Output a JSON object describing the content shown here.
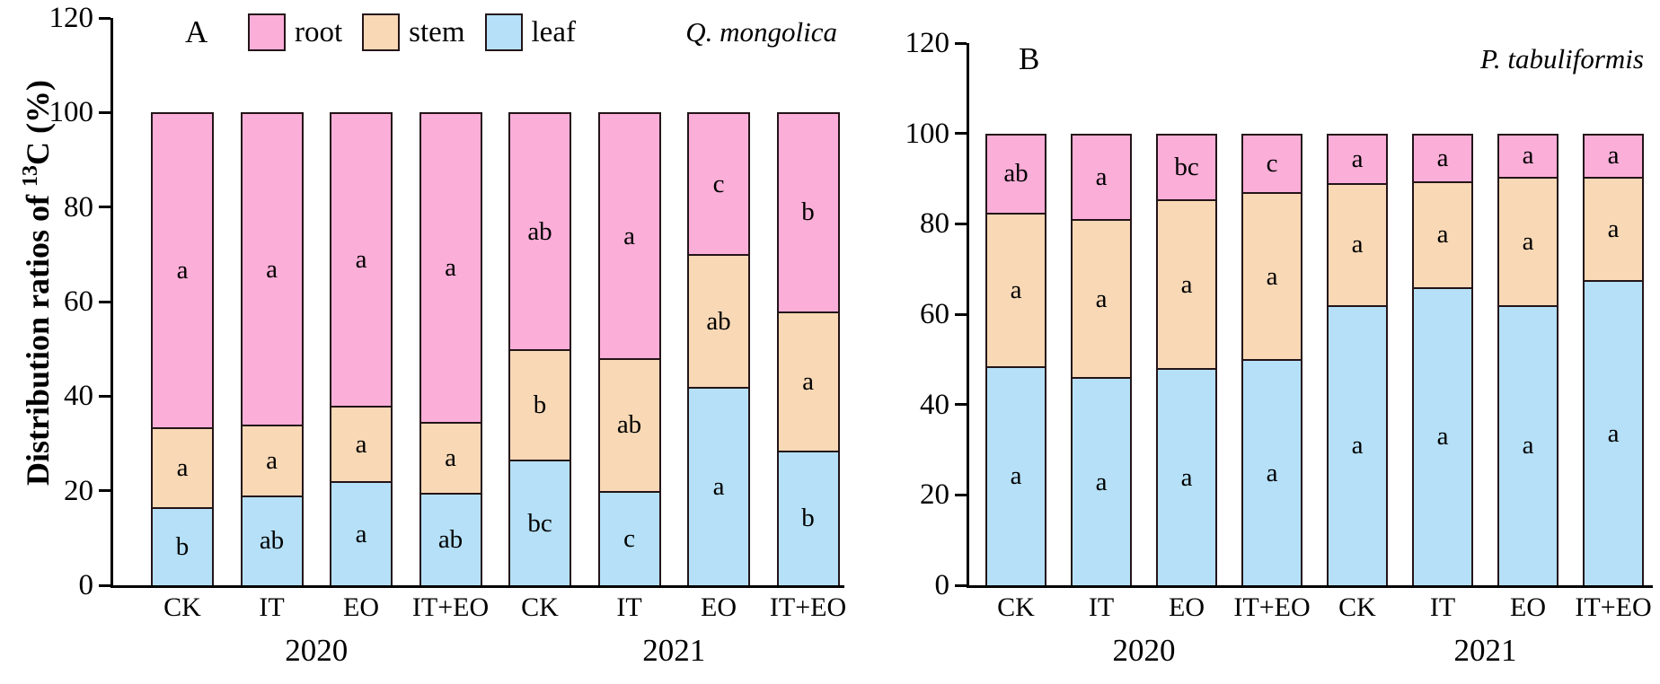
{
  "figure": {
    "background": "#ffffff",
    "axis_color": "#000000",
    "bar_border_color": "#231418",
    "ylabel": {
      "prefix": "Distribution ratios of ",
      "sup": "13",
      "suffix": "C (%)"
    },
    "legend": {
      "position": "top-left of panel A",
      "items": [
        {
          "label": "root",
          "color": "#fbaed8"
        },
        {
          "label": "stem",
          "color": "#f8d8b5"
        },
        {
          "label": "leaf",
          "color": "#b5e0f7"
        }
      ]
    }
  },
  "chart_data": [
    {
      "type": "bar",
      "stacked": true,
      "panel_label": "A",
      "species": "Q. mongolica",
      "ylabel": "Distribution ratios of 13C (%)",
      "ylim": [
        0,
        120
      ],
      "yticks": [
        0,
        20,
        40,
        60,
        80,
        100,
        120
      ],
      "grid": false,
      "categories": [
        "CK",
        "IT",
        "EO",
        "IT+EO",
        "CK",
        "IT",
        "EO",
        "IT+EO"
      ],
      "year_groups": [
        "2020",
        "2021"
      ],
      "series": [
        {
          "name": "leaf",
          "color": "#b5e0f7",
          "values": [
            16.5,
            19,
            22,
            19.5,
            26.5,
            20,
            42,
            28.5
          ],
          "letters": [
            "b",
            "ab",
            "a",
            "ab",
            "bc",
            "c",
            "a",
            "b"
          ]
        },
        {
          "name": "stem",
          "color": "#f8d8b5",
          "values": [
            17,
            15,
            16,
            15,
            23.5,
            28,
            28,
            29.5
          ],
          "letters": [
            "a",
            "a",
            "a",
            "a",
            "b",
            "ab",
            "ab",
            "a"
          ]
        },
        {
          "name": "root",
          "color": "#fbaed8",
          "values": [
            66.5,
            66,
            62,
            65.5,
            50,
            52,
            30,
            42
          ],
          "letters": [
            "a",
            "a",
            "a",
            "a",
            "ab",
            "a",
            "c",
            "b"
          ]
        }
      ]
    },
    {
      "type": "bar",
      "stacked": true,
      "panel_label": "B",
      "species": "P. tabuliformis",
      "ylim": [
        0,
        120
      ],
      "yticks": [
        0,
        20,
        40,
        60,
        80,
        100,
        120
      ],
      "grid": false,
      "categories": [
        "CK",
        "IT",
        "EO",
        "IT+EO",
        "CK",
        "IT",
        "EO",
        "IT+EO"
      ],
      "year_groups": [
        "2020",
        "2021"
      ],
      "series": [
        {
          "name": "leaf",
          "color": "#b5e0f7",
          "values": [
            48.5,
            46,
            48,
            50,
            62,
            66,
            62,
            67.5
          ],
          "letters": [
            "a",
            "a",
            "a",
            "a",
            "a",
            "a",
            "a",
            "a"
          ]
        },
        {
          "name": "stem",
          "color": "#f8d8b5",
          "values": [
            34,
            35,
            37.5,
            37,
            27,
            23.5,
            28.5,
            23
          ],
          "letters": [
            "a",
            "a",
            "a",
            "a",
            "a",
            "a",
            "a",
            "a"
          ]
        },
        {
          "name": "root",
          "color": "#fbaed8",
          "values": [
            17.5,
            19,
            14.5,
            13,
            11,
            10.5,
            9.5,
            9.5
          ],
          "letters": [
            "ab",
            "a",
            "bc",
            "c",
            "a",
            "a",
            "a",
            "a"
          ]
        }
      ]
    }
  ]
}
